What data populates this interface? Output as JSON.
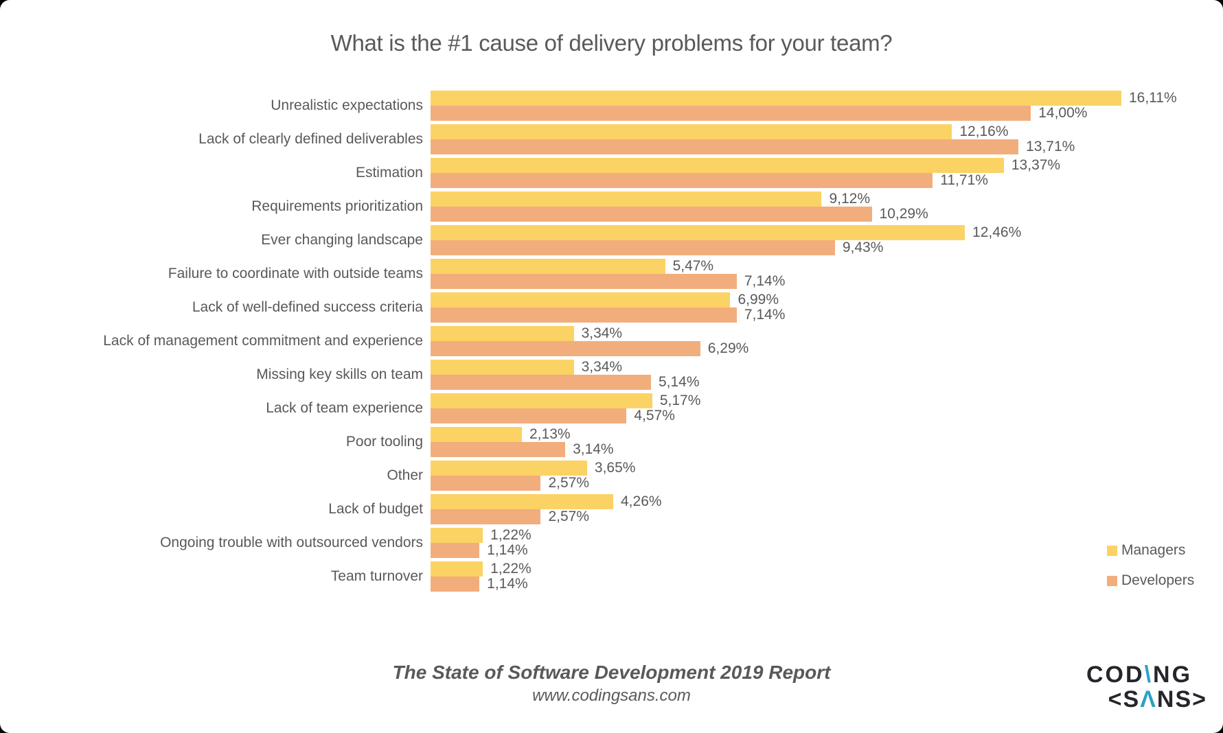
{
  "title": "What is the #1 cause of delivery problems for your team?",
  "chart_data": {
    "type": "bar",
    "orientation": "horizontal",
    "xlim": [
      0,
      18
    ],
    "grid": false,
    "legend_position": "bottom-right",
    "value_label_format": "comma-decimal percent",
    "categories": [
      "Unrealistic expectations",
      "Lack of clearly defined deliverables",
      "Estimation",
      "Requirements prioritization",
      "Ever changing landscape",
      "Failure to coordinate with outside teams",
      "Lack of well-defined success criteria",
      "Lack of management commitment and experience",
      "Missing key skills on team",
      "Lack of team experience",
      "Poor tooling",
      "Other",
      "Lack of budget",
      "Ongoing trouble with outsourced vendors",
      "Team turnover"
    ],
    "series": [
      {
        "name": "Managers",
        "color": "#FBD264",
        "values": [
          16.11,
          12.16,
          13.37,
          9.12,
          12.46,
          5.47,
          6.99,
          3.34,
          3.34,
          5.17,
          2.13,
          3.65,
          4.26,
          1.22,
          1.22
        ],
        "labels": [
          "16,11%",
          "12,16%",
          "13,37%",
          "9,12%",
          "12,46%",
          "5,47%",
          "6,99%",
          "3,34%",
          "3,34%",
          "5,17%",
          "2,13%",
          "3,65%",
          "4,26%",
          "1,22%",
          "1,22%"
        ]
      },
      {
        "name": "Developers",
        "color": "#F2AD7C",
        "values": [
          14.0,
          13.71,
          11.71,
          10.29,
          9.43,
          7.14,
          7.14,
          6.29,
          5.14,
          4.57,
          3.14,
          2.57,
          2.57,
          1.14,
          1.14
        ],
        "labels": [
          "14,00%",
          "13,71%",
          "11,71%",
          "10,29%",
          "9,43%",
          "7,14%",
          "7,14%",
          "6,29%",
          "5,14%",
          "4,57%",
          "3,14%",
          "2,57%",
          "2,57%",
          "1,14%",
          "1,14%"
        ]
      }
    ]
  },
  "footer": {
    "report_title": "The State of Software Development 2019 Report",
    "website": "www.codingsans.com"
  },
  "logo": {
    "line1": {
      "pre": "COD",
      "accent": "\\",
      "post": "NG"
    },
    "line2": {
      "pre": "<S",
      "accent": "Λ",
      "post": "NS>"
    },
    "colors": {
      "dark": "#25252B",
      "accent": "#2E9FC5"
    }
  },
  "colors": {
    "text": "#595959",
    "background": "#FFFFFF"
  }
}
